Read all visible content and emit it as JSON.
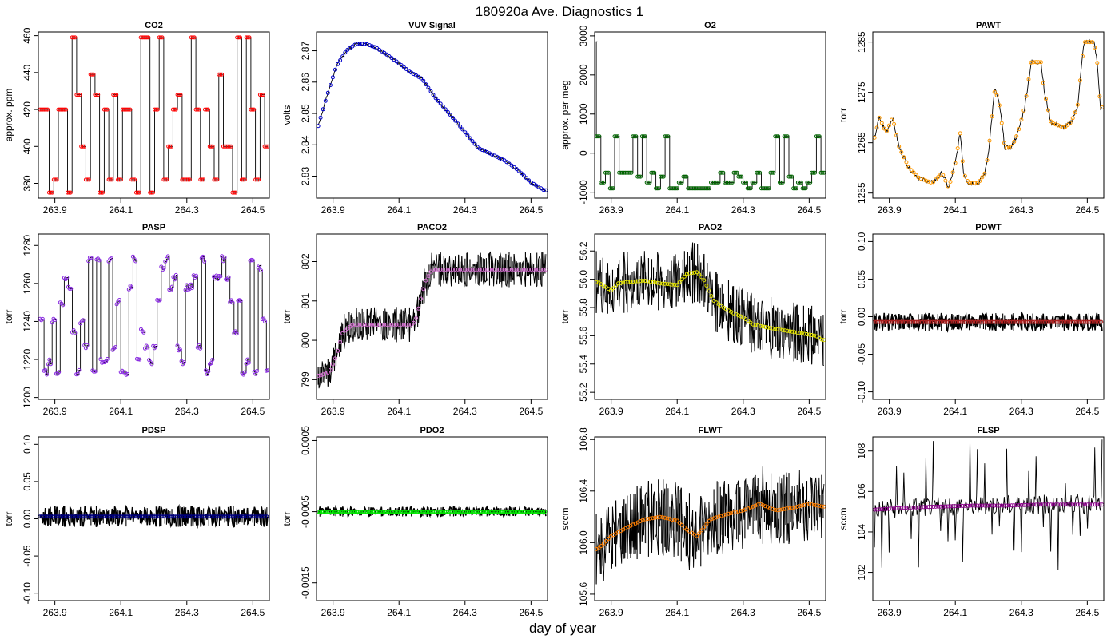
{
  "figure": {
    "title": "180920a   Ave. Diagnostics 1",
    "xlabel": "day of year"
  },
  "chart_data": [
    {
      "type": "line",
      "title": "CO2",
      "ylabel": "approx. ppm",
      "xlim": [
        263.85,
        264.55
      ],
      "ylim": [
        372,
        462
      ],
      "xticks": [
        263.9,
        264.1,
        264.3,
        264.5
      ],
      "yticks": [
        380,
        400,
        420,
        440,
        460
      ],
      "ytick_labels": [
        "380",
        "400",
        "420",
        "440",
        "460"
      ],
      "marker_color": "#ff0000",
      "line_color": "#000000",
      "pattern": "co2",
      "levels": [
        375,
        382,
        400,
        420,
        428,
        439,
        459
      ],
      "noise": 0
    },
    {
      "type": "line",
      "title": "VUV Signal",
      "ylabel": "volts",
      "xlim": [
        263.85,
        264.55
      ],
      "ylim": [
        2.823,
        2.876
      ],
      "xticks": [
        263.9,
        264.1,
        264.3,
        264.5
      ],
      "yticks": [
        2.83,
        2.84,
        2.85,
        2.86,
        2.87
      ],
      "ytick_labels": [
        "2.83",
        "2.84",
        "2.85",
        "2.86",
        "2.87"
      ],
      "marker_color": "#0000cc",
      "line_color": "#000000",
      "pattern": "curve",
      "curve": [
        [
          263.855,
          2.846
        ],
        [
          263.88,
          2.855
        ],
        [
          263.91,
          2.865
        ],
        [
          263.94,
          2.87
        ],
        [
          263.97,
          2.8722
        ],
        [
          264.0,
          2.8722
        ],
        [
          264.03,
          2.871
        ],
        [
          264.06,
          2.869
        ],
        [
          264.1,
          2.866
        ],
        [
          264.13,
          2.8635
        ],
        [
          264.17,
          2.861
        ],
        [
          264.21,
          2.855
        ],
        [
          264.26,
          2.849
        ],
        [
          264.3,
          2.844
        ],
        [
          264.34,
          2.839
        ],
        [
          264.38,
          2.837
        ],
        [
          264.42,
          2.835
        ],
        [
          264.46,
          2.832
        ],
        [
          264.5,
          2.828
        ],
        [
          264.54,
          2.8255
        ]
      ],
      "noise": 0.0004
    },
    {
      "type": "line",
      "title": "O2",
      "ylabel": "approx. per meg",
      "xlim": [
        263.85,
        264.55
      ],
      "ylim": [
        -1150,
        3100
      ],
      "xticks": [
        263.9,
        264.1,
        264.3,
        264.5
      ],
      "yticks": [
        -1000,
        0,
        1000,
        2000,
        3000
      ],
      "ytick_labels": [
        "-1000",
        "0",
        "1000",
        "2000",
        "3000"
      ],
      "marker_color": "#006400",
      "line_color": "#000000",
      "pattern": "o2",
      "levels": [
        -900,
        -750,
        -600,
        -500,
        430
      ],
      "noise": 0
    },
    {
      "type": "line",
      "title": "PAWT",
      "ylabel": "torr",
      "xlim": [
        263.85,
        264.55
      ],
      "ylim": [
        1254,
        1287
      ],
      "xticks": [
        263.9,
        264.1,
        264.3,
        264.5
      ],
      "yticks": [
        1255,
        1265,
        1275,
        1285
      ],
      "ytick_labels": [
        "1255",
        "1265",
        "1275",
        "1285"
      ],
      "marker_color": "#ff9900",
      "line_color": "#000000",
      "pattern": "curve",
      "curve": [
        [
          263.855,
          1266
        ],
        [
          263.87,
          1270
        ],
        [
          263.89,
          1267
        ],
        [
          263.91,
          1270
        ],
        [
          263.93,
          1264
        ],
        [
          263.96,
          1260
        ],
        [
          263.99,
          1258
        ],
        [
          264.03,
          1257
        ],
        [
          264.06,
          1259
        ],
        [
          264.08,
          1256
        ],
        [
          264.1,
          1261
        ],
        [
          264.115,
          1267
        ],
        [
          264.125,
          1259
        ],
        [
          264.14,
          1257
        ],
        [
          264.17,
          1257
        ],
        [
          264.19,
          1259
        ],
        [
          264.2,
          1263
        ],
        [
          264.22,
          1276
        ],
        [
          264.235,
          1272
        ],
        [
          264.25,
          1264
        ],
        [
          264.27,
          1264
        ],
        [
          264.29,
          1267
        ],
        [
          264.31,
          1272
        ],
        [
          264.33,
          1281
        ],
        [
          264.36,
          1281
        ],
        [
          264.37,
          1275
        ],
        [
          264.39,
          1269
        ],
        [
          264.43,
          1268
        ],
        [
          264.45,
          1269
        ],
        [
          264.47,
          1272
        ],
        [
          264.49,
          1285
        ],
        [
          264.52,
          1285
        ],
        [
          264.53,
          1281
        ],
        [
          264.54,
          1272
        ]
      ],
      "noise": 0.5
    },
    {
      "type": "line",
      "title": "PASP",
      "ylabel": "torr",
      "xlim": [
        263.85,
        264.55
      ],
      "ylim": [
        1199,
        1286
      ],
      "xticks": [
        263.9,
        264.1,
        264.3,
        264.5
      ],
      "yticks": [
        1200,
        1220,
        1240,
        1260,
        1280
      ],
      "ytick_labels": [
        "1200",
        "1220",
        "1240",
        "1260",
        "1280"
      ],
      "marker_color": "#8a2be2",
      "line_color": "#000000",
      "pattern": "pasp",
      "levels": [
        1213,
        1219,
        1226,
        1235,
        1240,
        1250,
        1258,
        1263,
        1268,
        1273
      ],
      "noise": 3
    },
    {
      "type": "line",
      "title": "PACO2",
      "ylabel": "torr",
      "xlim": [
        263.85,
        264.55
      ],
      "ylim": [
        798.5,
        802.7
      ],
      "xticks": [
        263.9,
        264.1,
        264.3,
        264.5
      ],
      "yticks": [
        799,
        800,
        801,
        802
      ],
      "ytick_labels": [
        "799",
        "800",
        "801",
        "802"
      ],
      "marker_color": "#da70d6",
      "line_color": "#000000",
      "pattern": "curve",
      "curve": [
        [
          263.86,
          799.1
        ],
        [
          263.89,
          799.2
        ],
        [
          263.91,
          799.6
        ],
        [
          263.93,
          800.2
        ],
        [
          263.96,
          800.4
        ],
        [
          264.0,
          800.4
        ],
        [
          264.05,
          800.4
        ],
        [
          264.1,
          800.4
        ],
        [
          264.14,
          800.4
        ],
        [
          264.15,
          800.5
        ],
        [
          264.18,
          801.5
        ],
        [
          264.2,
          801.8
        ],
        [
          264.25,
          801.8
        ],
        [
          264.3,
          801.8
        ],
        [
          264.4,
          801.8
        ],
        [
          264.54,
          801.8
        ]
      ],
      "noise": 0.45
    },
    {
      "type": "line",
      "title": "PAO2",
      "ylabel": "torr",
      "xlim": [
        263.85,
        264.55
      ],
      "ylim": [
        55.15,
        56.32
      ],
      "xticks": [
        263.9,
        264.1,
        264.3,
        264.5
      ],
      "yticks": [
        55.2,
        55.4,
        55.6,
        55.8,
        56.0,
        56.2
      ],
      "ytick_labels": [
        "55.2",
        "55.4",
        "55.6",
        "55.8",
        "56.0",
        "56.2"
      ],
      "marker_color": "#e6e600",
      "line_color": "#000000",
      "pattern": "curve",
      "curve": [
        [
          263.86,
          55.98
        ],
        [
          263.88,
          55.95
        ],
        [
          263.9,
          55.92
        ],
        [
          263.92,
          55.97
        ],
        [
          263.95,
          55.98
        ],
        [
          264.0,
          55.99
        ],
        [
          264.05,
          55.97
        ],
        [
          264.1,
          55.96
        ],
        [
          264.13,
          56.04
        ],
        [
          264.16,
          56.05
        ],
        [
          264.18,
          56.0
        ],
        [
          264.21,
          55.85
        ],
        [
          264.24,
          55.8
        ],
        [
          264.27,
          55.76
        ],
        [
          264.3,
          55.73
        ],
        [
          264.33,
          55.68
        ],
        [
          264.37,
          55.66
        ],
        [
          264.42,
          55.64
        ],
        [
          264.47,
          55.62
        ],
        [
          264.52,
          55.6
        ],
        [
          264.54,
          55.57
        ]
      ],
      "noise": 0.22
    },
    {
      "type": "line",
      "title": "PDWT",
      "ylabel": "torr",
      "xlim": [
        263.85,
        264.55
      ],
      "ylim": [
        -0.11,
        0.11
      ],
      "xticks": [
        263.9,
        264.1,
        264.3,
        264.5
      ],
      "yticks": [
        -0.1,
        -0.05,
        0,
        0.05,
        0.1
      ],
      "ytick_labels": [
        "-0.10",
        "-0.05",
        "0.00",
        "0.05",
        "0.10"
      ],
      "marker_color": "#b22222",
      "line_color": "#000000",
      "pattern": "flat",
      "base": -0.007,
      "noise": 0.012
    },
    {
      "type": "line",
      "title": "PDSP",
      "ylabel": "torr",
      "xlim": [
        263.85,
        264.55
      ],
      "ylim": [
        -0.11,
        0.11
      ],
      "xticks": [
        263.9,
        264.1,
        264.3,
        264.5
      ],
      "yticks": [
        -0.1,
        -0.05,
        0,
        0.05,
        0.1
      ],
      "ytick_labels": [
        "-0.10",
        "-0.05",
        "0.00",
        "0.05",
        "0.10"
      ],
      "marker_color": "#000080",
      "line_color": "#000000",
      "pattern": "flat",
      "base": 0.003,
      "noise": 0.014
    },
    {
      "type": "line",
      "title": "PDO2",
      "ylabel": "torr",
      "xlim": [
        263.85,
        264.55
      ],
      "ylim": [
        -0.00175,
        0.00055
      ],
      "xticks": [
        263.9,
        264.1,
        264.3,
        264.5
      ],
      "yticks": [
        -0.0015,
        -0.0005,
        0.0005
      ],
      "ytick_labels": [
        "-0.0015",
        "-0.0005",
        "0.0005"
      ],
      "marker_color": "#00ee00",
      "line_color": "#000000",
      "pattern": "flat",
      "base": -0.0005,
      "noise": 7e-05
    },
    {
      "type": "line",
      "title": "FLWT",
      "ylabel": "sccm",
      "xlim": [
        263.85,
        264.55
      ],
      "ylim": [
        105.55,
        106.82
      ],
      "xticks": [
        263.9,
        264.1,
        264.3,
        264.5
      ],
      "yticks": [
        105.6,
        106.0,
        106.4,
        106.8
      ],
      "ytick_labels": [
        "105.6",
        "106.0",
        "106.4",
        "106.8"
      ],
      "marker_color": "#ff7f00",
      "line_color": "#000000",
      "pattern": "curve",
      "curve": [
        [
          263.86,
          105.95
        ],
        [
          263.9,
          106.05
        ],
        [
          263.95,
          106.12
        ],
        [
          264.0,
          106.18
        ],
        [
          264.05,
          106.2
        ],
        [
          264.1,
          106.17
        ],
        [
          264.13,
          106.1
        ],
        [
          264.16,
          106.05
        ],
        [
          264.2,
          106.18
        ],
        [
          264.25,
          106.22
        ],
        [
          264.3,
          106.25
        ],
        [
          264.35,
          106.3
        ],
        [
          264.4,
          106.25
        ],
        [
          264.45,
          106.27
        ],
        [
          264.5,
          106.3
        ],
        [
          264.54,
          106.28
        ]
      ],
      "noise": 0.3
    },
    {
      "type": "line",
      "title": "FLSP",
      "ylabel": "sccm",
      "xlim": [
        263.85,
        264.55
      ],
      "ylim": [
        100.6,
        108.7
      ],
      "xticks": [
        263.9,
        264.1,
        264.3,
        264.5
      ],
      "yticks": [
        102,
        104,
        106,
        108
      ],
      "ytick_labels": [
        "102",
        "104",
        "106",
        "108"
      ],
      "marker_color": "#8b008b",
      "line_color": "#000000",
      "pattern": "curve",
      "curve": [
        [
          263.86,
          105.1
        ],
        [
          263.95,
          105.2
        ],
        [
          264.05,
          105.25
        ],
        [
          264.15,
          105.3
        ],
        [
          264.25,
          105.3
        ],
        [
          264.35,
          105.35
        ],
        [
          264.45,
          105.35
        ],
        [
          264.54,
          105.35
        ]
      ],
      "noise": 0.5,
      "spikes": true
    }
  ]
}
